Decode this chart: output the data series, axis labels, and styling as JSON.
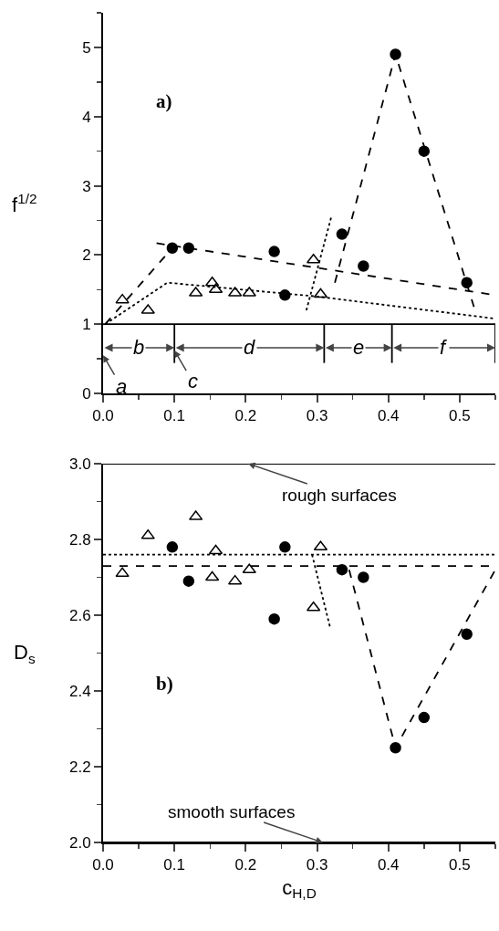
{
  "chart_data": [
    {
      "type": "scatter",
      "ylabel": "f$^{1/2}$",
      "xlim": [
        0,
        0.55
      ],
      "ylim": [
        0,
        5.5
      ],
      "xticks": [
        {
          "value": 0,
          "label": "0.0"
        },
        0.1,
        0.2,
        0.3,
        0.4,
        0.5
      ],
      "yticks": [
        0,
        1,
        2,
        3,
        4,
        5
      ],
      "grid": false,
      "annotations": [
        "a)",
        "a",
        {
          "text": "c",
          "x": 0.1,
          "y": 0.62
        },
        "b",
        "d",
        "e",
        "f"
      ],
      "ref_lines": [
        {
          "axis": "y",
          "value": 1,
          "color": "#000000",
          "line_style": "solid"
        },
        {
          "axis": "x",
          "value": 0.1,
          "color": "#000000",
          "line_style": "solid"
        },
        {
          "axis": "x",
          "value": 0.31,
          "color": "#000000",
          "line_style": "solid"
        },
        {
          "axis": "x",
          "value": 0.405,
          "color": "#000000",
          "line_style": "solid"
        },
        {
          "axis": "x",
          "value": 0.55,
          "color": "#000000",
          "line_style": "solid"
        }
      ],
      "series": [
        {
          "type": "scatter",
          "marker": "circle",
          "color": "#000000",
          "x": [
            0.097,
            0.12,
            0.24,
            0.255,
            0.335,
            0.365,
            0.41,
            0.45,
            0.51
          ],
          "values": [
            2.1,
            2.1,
            2.05,
            1.42,
            2.3,
            1.84,
            4.9,
            3.5,
            1.6
          ]
        },
        {
          "type": "scatter",
          "marker": "triangle",
          "color": "#000000",
          "x": [
            0.027,
            0.063,
            0.13,
            0.153,
            0.158,
            0.185,
            0.205,
            0.295,
            0.305
          ],
          "values": [
            1.35,
            1.2,
            1.45,
            1.6,
            1.5,
            1.45,
            1.45,
            1.93,
            1.43
          ]
        },
        {
          "type": "line",
          "line_style": "dashed",
          "color": "#000000",
          "x": [
            0.003,
            0.097
          ],
          "values": [
            1.0,
            2.1
          ]
        },
        {
          "type": "line",
          "line_style": "dashed",
          "color": "#000000",
          "x": [
            0.075,
            0.55
          ],
          "values": [
            2.17,
            1.42
          ]
        },
        {
          "type": "line",
          "line_style": "dashed",
          "color": "#000000",
          "x": [
            0.325,
            0.41,
            0.52
          ],
          "values": [
            1.6,
            4.9,
            1.25
          ]
        },
        {
          "type": "line",
          "line_style": "dotted",
          "color": "#000000",
          "x": [
            0.003,
            0.09,
            0.3,
            0.55
          ],
          "values": [
            1.0,
            1.6,
            1.4,
            1.08
          ]
        },
        {
          "type": "line",
          "line_style": "dotted",
          "color": "#000000",
          "x": [
            0.285,
            0.32
          ],
          "values": [
            1.2,
            2.55
          ]
        }
      ]
    },
    {
      "type": "scatter",
      "ylabel": "D$_{s}$",
      "xlabel": "c$_{H,D}$",
      "xlim": [
        0,
        0.55
      ],
      "ylim": [
        2,
        3
      ],
      "xticks": [
        {
          "value": 0,
          "label": "0.0"
        },
        0.1,
        0.2,
        0.3,
        0.4,
        0.5
      ],
      "yticks": [
        {
          "value": 2,
          "label": "2.0"
        },
        2.2,
        2.4,
        2.6,
        2.8,
        {
          "value": 3,
          "label": "3.0"
        }
      ],
      "grid": false,
      "annotations": [
        "b)"
      ],
      "ref_lines": [
        {
          "axis": "y",
          "value": 3,
          "label": "rough surfaces",
          "color": "#000000",
          "line_style": "solid"
        },
        {
          "axis": "y",
          "value": 2.76,
          "color": "#000000",
          "line_style": "dotted"
        },
        {
          "axis": "y",
          "value": 2.73,
          "color": "#000000",
          "line_style": "dashed"
        },
        {
          "axis": "y",
          "value": 2,
          "label": "smooth surfaces",
          "color": "#000000",
          "line_style": "solid"
        }
      ],
      "series": [
        {
          "type": "scatter",
          "marker": "circle",
          "color": "#000000",
          "x": [
            0.097,
            0.12,
            0.24,
            0.255,
            0.335,
            0.365,
            0.41,
            0.45,
            0.51
          ],
          "values": [
            2.78,
            2.69,
            2.59,
            2.78,
            2.72,
            2.7,
            2.25,
            2.33,
            2.55
          ]
        },
        {
          "type": "scatter",
          "marker": "triangle",
          "color": "#000000",
          "x": [
            0.027,
            0.063,
            0.13,
            0.153,
            0.158,
            0.185,
            0.205,
            0.295,
            0.305
          ],
          "values": [
            2.71,
            2.81,
            2.86,
            2.7,
            2.77,
            2.69,
            2.72,
            2.62,
            2.78
          ]
        },
        {
          "type": "line",
          "line_style": "dashed",
          "color": "#000000",
          "x": [
            0.345,
            0.41,
            0.55
          ],
          "values": [
            2.72,
            2.25,
            2.72
          ]
        },
        {
          "type": "line",
          "line_style": "dotted",
          "color": "#000000",
          "x": [
            0.293,
            0.318
          ],
          "values": [
            2.76,
            2.57
          ]
        }
      ]
    }
  ]
}
